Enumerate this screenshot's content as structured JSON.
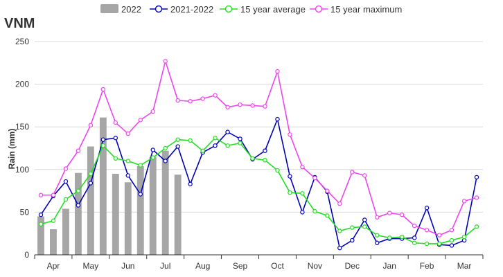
{
  "chart_data": {
    "type": "bar",
    "title": "VNM",
    "xlabel": "",
    "ylabel": "Rain (mm)",
    "ylim": [
      0,
      250
    ],
    "yticks": [
      0,
      50,
      100,
      150,
      200,
      250
    ],
    "months": [
      "Apr",
      "May",
      "Jun",
      "Jul",
      "Aug",
      "Sep",
      "Oct",
      "Nov",
      "Dec",
      "Jan",
      "Feb",
      "Mar"
    ],
    "periods_per_month": 3,
    "grid": "horizontal",
    "legend_position": "top",
    "series": [
      {
        "name": "2022",
        "type": "bar",
        "color": "#a6a6a6",
        "values": [
          45,
          30,
          54,
          96,
          127,
          161,
          95,
          85,
          104,
          115,
          122,
          94
        ]
      },
      {
        "name": "2021-2022",
        "type": "line",
        "color": "#0000b3",
        "values": [
          47,
          69,
          86,
          58,
          84,
          135,
          137,
          93,
          71,
          123,
          110,
          127,
          83,
          120,
          128,
          144,
          136,
          112,
          122,
          159,
          92,
          50,
          91,
          74,
          8,
          17,
          41,
          14,
          19,
          19,
          20,
          55,
          12,
          11,
          17,
          91
        ]
      },
      {
        "name": "15 year average",
        "type": "line",
        "color": "#22dd22",
        "values": [
          36,
          40,
          65,
          75,
          95,
          128,
          113,
          110,
          105,
          114,
          125,
          135,
          134,
          122,
          137,
          128,
          131,
          113,
          111,
          99,
          73,
          72,
          51,
          46,
          28,
          32,
          33,
          23,
          20,
          21,
          14,
          13,
          13,
          17,
          21,
          33
        ]
      },
      {
        "name": "15 year maximum",
        "type": "line",
        "color": "#ee44ee",
        "values": [
          70,
          70,
          101,
          122,
          152,
          194,
          155,
          142,
          158,
          168,
          227,
          181,
          180,
          183,
          187,
          173,
          176,
          175,
          174,
          215,
          141,
          103,
          90,
          75,
          60,
          97,
          93,
          44,
          49,
          47,
          34,
          29,
          23,
          29,
          63,
          67
        ]
      }
    ]
  }
}
